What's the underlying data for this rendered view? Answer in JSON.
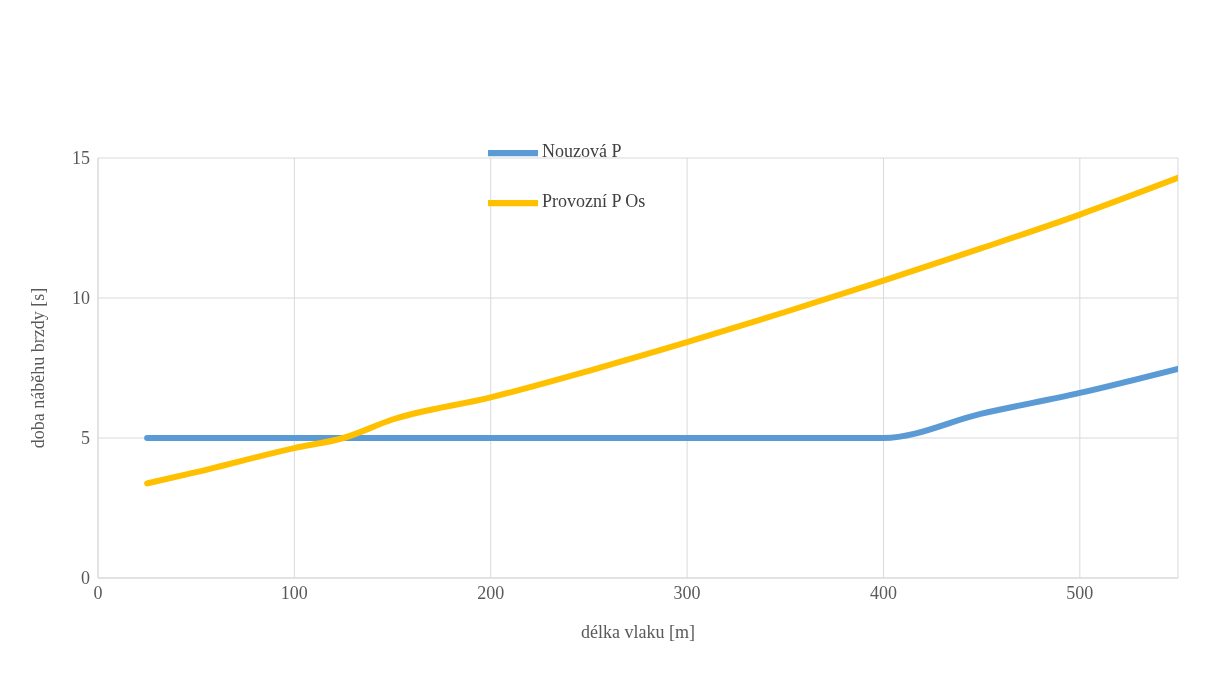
{
  "chart_data": {
    "type": "line",
    "xlabel": "délka vlaku [m]",
    "ylabel": "doba náběhu brzdy [s]",
    "xlim": [
      0,
      550
    ],
    "xticks": [
      0,
      100,
      200,
      300,
      400,
      500
    ],
    "ylim": [
      0,
      15
    ],
    "yticks": [
      0,
      5,
      10,
      15
    ],
    "grid": true,
    "legend": "top",
    "marker": "none",
    "line_style": "solid",
    "series": [
      {
        "name": "Nouzová P",
        "color": "#5b9bd5",
        "x": [
          25,
          400,
          450,
          500,
          550
        ],
        "values": [
          5,
          5,
          5.87,
          6.61,
          7.47
        ]
      },
      {
        "name": "Provozní P Os",
        "color": "#ffc000",
        "x": [
          25,
          50,
          100,
          125,
          150,
          200,
          250,
          300,
          350,
          400,
          450,
          500,
          550
        ],
        "values": [
          3.38,
          3.78,
          4.64,
          5,
          5.66,
          6.45,
          7.4,
          8.42,
          9.5,
          10.62,
          11.78,
          12.98,
          14.29
        ]
      }
    ]
  }
}
